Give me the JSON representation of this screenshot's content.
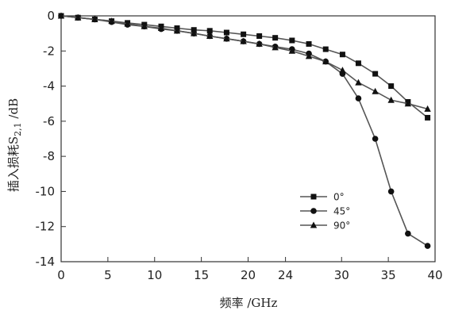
{
  "chart_data": {
    "type": "line",
    "xlabel": "频率 /GHz",
    "ylabel_main": "插入损耗S",
    "ylabel_sub": "2,1",
    "ylabel_unit": " /dB",
    "xlim": [
      0,
      40
    ],
    "ylim": [
      -14,
      0
    ],
    "xticks": [
      0,
      5,
      10,
      15,
      20,
      24,
      30,
      35,
      40
    ],
    "yticks": [
      0,
      -2,
      -4,
      -6,
      -8,
      -10,
      -12,
      -14
    ],
    "grid": false,
    "legend_position": "center-right",
    "series": [
      {
        "name": "0°",
        "marker": "square",
        "x": [
          0,
          1.8,
          3.6,
          5.4,
          7.1,
          8.9,
          10.7,
          12.4,
          14.2,
          15.9,
          17.7,
          19.5,
          21.2,
          22.9,
          24.7,
          26.5,
          28.3,
          30.1,
          31.8,
          33.6,
          35.3,
          37.1,
          39.2
        ],
        "y": [
          0,
          -0.1,
          -0.2,
          -0.3,
          -0.4,
          -0.5,
          -0.6,
          -0.7,
          -0.8,
          -0.85,
          -0.95,
          -1.05,
          -1.15,
          -1.25,
          -1.4,
          -1.6,
          -1.9,
          -2.2,
          -2.7,
          -3.3,
          -4.0,
          -4.9,
          -5.8
        ]
      },
      {
        "name": "45°",
        "marker": "circle",
        "x": [
          0,
          1.8,
          3.6,
          5.4,
          7.1,
          8.9,
          10.7,
          12.4,
          14.2,
          15.9,
          17.7,
          19.5,
          21.2,
          22.9,
          24.7,
          26.5,
          28.3,
          30.1,
          31.8,
          33.6,
          35.3,
          37.1,
          39.2
        ],
        "y": [
          0,
          -0.1,
          -0.2,
          -0.35,
          -0.5,
          -0.6,
          -0.75,
          -0.85,
          -1.0,
          -1.15,
          -1.3,
          -1.45,
          -1.6,
          -1.75,
          -1.9,
          -2.15,
          -2.6,
          -3.3,
          -4.7,
          -7.0,
          -10.0,
          -12.4,
          -13.1
        ]
      },
      {
        "name": "90°",
        "marker": "triangle",
        "x": [
          0,
          1.8,
          3.6,
          5.4,
          7.1,
          8.9,
          10.7,
          12.4,
          14.2,
          15.9,
          17.7,
          19.5,
          21.2,
          22.9,
          24.7,
          26.5,
          28.3,
          30.1,
          31.8,
          33.6,
          35.3,
          37.1,
          39.2
        ],
        "y": [
          0,
          -0.1,
          -0.2,
          -0.3,
          -0.45,
          -0.6,
          -0.7,
          -0.85,
          -1.0,
          -1.15,
          -1.3,
          -1.45,
          -1.6,
          -1.8,
          -2.0,
          -2.3,
          -2.6,
          -3.1,
          -3.8,
          -4.3,
          -4.8,
          -5.0,
          -5.3
        ]
      }
    ]
  }
}
